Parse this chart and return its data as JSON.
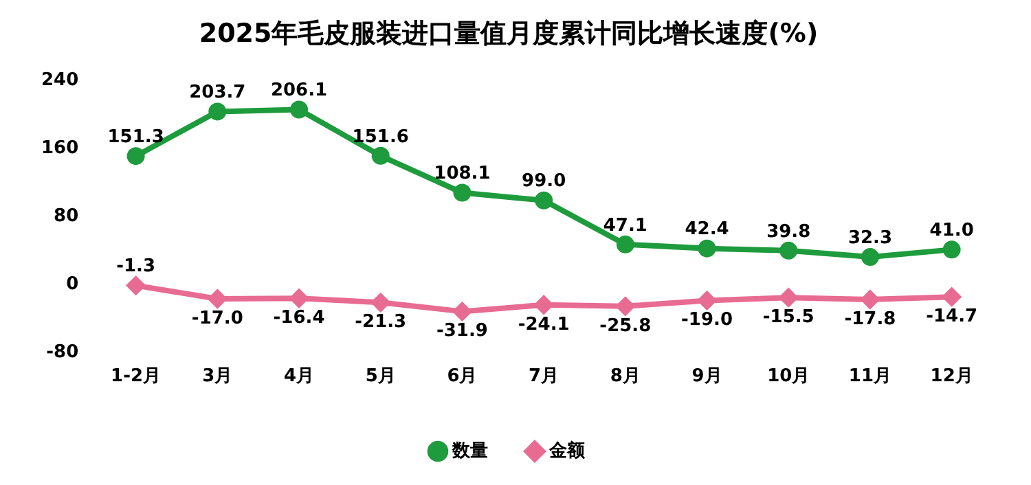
{
  "chart_data": {
    "type": "line",
    "title": "2025年毛皮服装进口量值月度累计同比增长速度(%)",
    "categories": [
      "1-2月",
      "3月",
      "4月",
      "5月",
      "6月",
      "7月",
      "8月",
      "9月",
      "10月",
      "11月",
      "12月"
    ],
    "series": [
      {
        "name": "数量",
        "color": "#1e9b3c",
        "marker": "circle",
        "values": [
          151.3,
          203.7,
          206.1,
          151.6,
          108.1,
          99.0,
          47.1,
          42.4,
          39.8,
          32.3,
          41.0
        ],
        "value_labels": [
          "151.3",
          "203.7",
          "206.1",
          "151.6",
          "108.1",
          "99.0",
          "47.1",
          "42.4",
          "39.8",
          "32.3",
          "41.0"
        ]
      },
      {
        "name": "金额",
        "color": "#e86b92",
        "marker": "diamond",
        "values": [
          -1.3,
          -17.0,
          -16.4,
          -21.3,
          -31.9,
          -24.1,
          -25.8,
          -19.0,
          -15.5,
          -17.8,
          -14.7
        ],
        "value_labels": [
          "-1.3",
          "-17.0",
          "-16.4",
          "-21.3",
          "-31.9",
          "-24.1",
          "-25.8",
          "-19.0",
          "-15.5",
          "-17.8",
          "-14.7"
        ]
      }
    ],
    "ylim": [
      -80,
      240
    ],
    "yticks": [
      -80,
      0,
      80,
      160,
      240
    ],
    "grid": false,
    "legend": "bottom",
    "line_style": "solid"
  }
}
